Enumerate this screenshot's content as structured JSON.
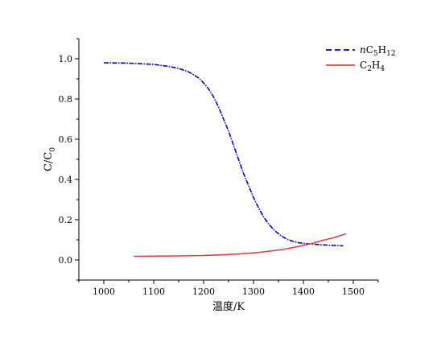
{
  "chart_data": {
    "type": "line",
    "xlabel": "温度/K",
    "ylabel": "C/C0",
    "ylabel_parts": {
      "main": "C/C",
      "sub": "0"
    },
    "xlim": [
      950,
      1550
    ],
    "ylim": [
      -0.1,
      1.1
    ],
    "x_ticks": [
      1000,
      1100,
      1200,
      1300,
      1400,
      1500
    ],
    "y_ticks": [
      0.0,
      0.2,
      0.4,
      0.6,
      0.8,
      1.0
    ],
    "x_tick_labels": [
      "1000",
      "1100",
      "1200",
      "1300",
      "1400",
      "1500"
    ],
    "y_tick_labels": [
      "0.0",
      "0.2",
      "0.4",
      "0.6",
      "0.8",
      "1.0"
    ],
    "legend_position": "top-right",
    "series": [
      {
        "name": "n-C5H12",
        "legend_label": {
          "prefix": "n",
          "parts": [
            [
              "C",
              "5"
            ],
            [
              "H",
              "12"
            ]
          ]
        },
        "color": "#0000cc",
        "style": "dashed",
        "x": [
          1000,
          1050,
          1100,
          1130,
          1150,
          1170,
          1190,
          1200,
          1210,
          1220,
          1230,
          1240,
          1250,
          1260,
          1270,
          1280,
          1290,
          1300,
          1310,
          1320,
          1330,
          1340,
          1350,
          1360,
          1370,
          1380,
          1390,
          1400,
          1420,
          1440,
          1460,
          1480
        ],
        "y": [
          0.98,
          0.978,
          0.972,
          0.962,
          0.952,
          0.935,
          0.905,
          0.88,
          0.85,
          0.81,
          0.76,
          0.7,
          0.64,
          0.57,
          0.5,
          0.43,
          0.37,
          0.31,
          0.26,
          0.215,
          0.18,
          0.152,
          0.13,
          0.113,
          0.1,
          0.092,
          0.086,
          0.082,
          0.078,
          0.075,
          0.072,
          0.07
        ]
      },
      {
        "name": "C2H4",
        "legend_label": {
          "prefix": "",
          "parts": [
            [
              "C",
              "2"
            ],
            [
              "H",
              "4"
            ]
          ]
        },
        "color": "#e04040",
        "style": "solid",
        "x": [
          1060,
          1100,
          1150,
          1200,
          1250,
          1300,
          1320,
          1340,
          1360,
          1380,
          1400,
          1420,
          1440,
          1460,
          1485
        ],
        "y": [
          0.018,
          0.019,
          0.02,
          0.022,
          0.027,
          0.035,
          0.04,
          0.046,
          0.053,
          0.062,
          0.072,
          0.084,
          0.098,
          0.11,
          0.13
        ]
      }
    ]
  }
}
